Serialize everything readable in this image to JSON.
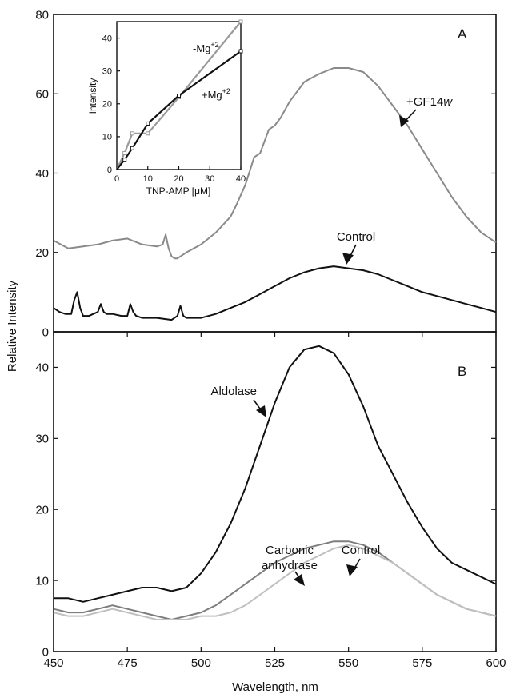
{
  "figure": {
    "ylabel": "Relative Intensity",
    "xlabel": "Wavelength, nm"
  },
  "chart_data": [
    {
      "panel": "A",
      "type": "line",
      "xlim": [
        450,
        600
      ],
      "ylim": [
        0,
        80
      ],
      "yticks": [
        "0",
        "20",
        "40",
        "60",
        "80"
      ],
      "xlabel": "",
      "ylabel": "",
      "legend": "none",
      "series": [
        {
          "name": "+GF14w",
          "color": "#8a8a8a",
          "x": [
            450,
            455,
            460,
            465,
            470,
            475,
            480,
            485,
            487,
            488,
            489,
            490,
            491,
            492,
            495,
            500,
            505,
            510,
            512,
            515,
            518,
            520,
            523,
            525,
            527,
            530,
            535,
            540,
            545,
            550,
            555,
            560,
            565,
            570,
            575,
            580,
            585,
            590,
            595,
            600
          ],
          "y": [
            23,
            21,
            21.5,
            22,
            23,
            23.5,
            22,
            21.5,
            22,
            24.5,
            21,
            19,
            18.5,
            18.5,
            20,
            22,
            25,
            29,
            32,
            37,
            44,
            45,
            51,
            52,
            54,
            58,
            63,
            65,
            66.5,
            66.5,
            65.5,
            62,
            57,
            52,
            46,
            40,
            34,
            29,
            25,
            22.5
          ]
        },
        {
          "name": "Control",
          "color": "#111111",
          "x": [
            450,
            452,
            454,
            456,
            457,
            458,
            459,
            460,
            462,
            465,
            466,
            467,
            468,
            470,
            473,
            475,
            476,
            477,
            478,
            480,
            485,
            490,
            492,
            493,
            494,
            495,
            500,
            505,
            510,
            515,
            520,
            525,
            530,
            535,
            540,
            545,
            550,
            555,
            560,
            565,
            570,
            575,
            580,
            585,
            590,
            595,
            600
          ],
          "y": [
            6,
            5,
            4.5,
            4.5,
            8,
            10,
            6,
            4,
            4,
            5,
            7,
            5,
            4.5,
            4.5,
            4,
            4,
            7,
            5,
            4,
            3.5,
            3.5,
            3,
            4,
            6.5,
            4,
            3.5,
            3.5,
            4.5,
            6,
            7.5,
            9.5,
            11.5,
            13.5,
            15,
            16,
            16.5,
            16,
            15.5,
            14.5,
            13,
            11.5,
            10,
            9,
            8,
            7,
            6,
            5
          ]
        }
      ]
    },
    {
      "panel": "A-inset",
      "type": "line",
      "xlabel": "TNP-AMP [μM]",
      "ylabel": "Intensity",
      "xlim": [
        0,
        40
      ],
      "ylim": [
        0,
        45
      ],
      "xticks": [
        "0",
        "10",
        "20",
        "30",
        "40"
      ],
      "yticks": [
        "0",
        "10",
        "20",
        "30",
        "40"
      ],
      "series": [
        {
          "name": "-Mg+2",
          "color": "#9a9a9a",
          "x": [
            0,
            2.5,
            5,
            10,
            20,
            40
          ],
          "y": [
            0,
            5,
            11,
            11,
            22,
            45
          ]
        },
        {
          "name": "+Mg+2",
          "color": "#111111",
          "x": [
            0,
            2.5,
            5,
            10,
            20,
            40
          ],
          "y": [
            0,
            3,
            6.5,
            14,
            22.5,
            36
          ]
        }
      ]
    },
    {
      "panel": "B",
      "type": "line",
      "xlim": [
        450,
        600
      ],
      "ylim": [
        0,
        45
      ],
      "xticks": [
        "450",
        "475",
        "500",
        "525",
        "550",
        "575",
        "600"
      ],
      "yticks": [
        "0",
        "10",
        "20",
        "30",
        "40"
      ],
      "xlabel": "",
      "ylabel": "",
      "legend": "none",
      "series": [
        {
          "name": "Aldolase",
          "color": "#111111",
          "x": [
            450,
            455,
            460,
            465,
            470,
            475,
            480,
            485,
            490,
            495,
            500,
            505,
            510,
            515,
            520,
            525,
            530,
            535,
            540,
            545,
            550,
            555,
            560,
            565,
            570,
            575,
            580,
            585,
            590,
            595,
            600
          ],
          "y": [
            7.5,
            7.5,
            7,
            7.5,
            8,
            8.5,
            9,
            9,
            8.5,
            9,
            11,
            14,
            18,
            23,
            29,
            35,
            40,
            42.5,
            43,
            42,
            39,
            34.5,
            29,
            25,
            21,
            17.5,
            14.5,
            12.5,
            11.5,
            10.5,
            9.5
          ]
        },
        {
          "name": "Carbonic anhydrase",
          "color": "#7e7e7e",
          "x": [
            450,
            455,
            460,
            465,
            470,
            475,
            480,
            485,
            490,
            495,
            500,
            505,
            510,
            515,
            520,
            525,
            530,
            535,
            540,
            545,
            550,
            555,
            560,
            565,
            570,
            575,
            580,
            585,
            590,
            595,
            600
          ],
          "y": [
            6,
            5.5,
            5.5,
            6,
            6.5,
            6,
            5.5,
            5,
            4.5,
            5,
            5.5,
            6.5,
            8,
            9.5,
            11,
            12.5,
            13.5,
            14.5,
            15,
            15.5,
            15.5,
            15,
            14,
            12.5,
            11,
            9.5,
            8,
            7,
            6,
            5.5,
            5
          ]
        },
        {
          "name": "Control",
          "color": "#c0c0c0",
          "x": [
            450,
            455,
            460,
            465,
            470,
            475,
            480,
            485,
            490,
            495,
            500,
            505,
            510,
            515,
            520,
            525,
            530,
            535,
            540,
            545,
            550,
            555,
            560,
            565,
            570,
            575,
            580,
            585,
            590,
            595,
            600
          ],
          "y": [
            5.5,
            5,
            5,
            5.5,
            6,
            5.5,
            5,
            4.5,
            4.5,
            4.5,
            5,
            5,
            5.5,
            6.5,
            8,
            9.5,
            11,
            12.5,
            13.5,
            14.5,
            15,
            14.5,
            13.5,
            12.5,
            11,
            9.5,
            8,
            7,
            6,
            5.5,
            5
          ]
        }
      ]
    }
  ],
  "annotations": {
    "panel_a_letter": "A",
    "panel_b_letter": "B",
    "gf14w_base": "+GF14",
    "gf14w_italic": "w",
    "control_a": "Control",
    "inset_minus_mg_base": "-Mg",
    "inset_minus_mg_sup": "+2",
    "inset_plus_mg_base": "+Mg",
    "inset_plus_mg_sup": "+2",
    "aldolase": "Aldolase",
    "carbonic_line1": "Carbonic",
    "carbonic_line2": "anhydrase",
    "control_b": "Control"
  }
}
